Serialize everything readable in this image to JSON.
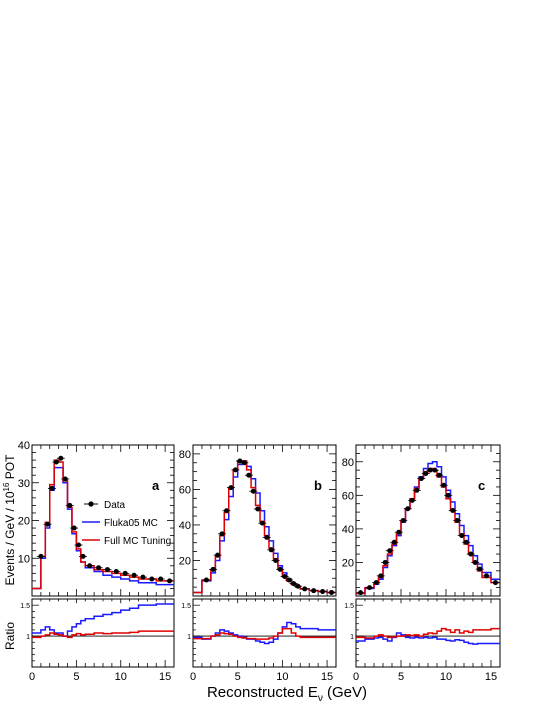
{
  "figure": {
    "ylabel_main": "Events / GeV / 10",
    "ylabel_main_sup": "16",
    "ylabel_main_unit": " POT",
    "ylabel_ratio": "Ratio",
    "xlabel_prefix": "Reconstructed E",
    "xlabel_sub": "ν",
    "xlabel_suffix": " (GeV)"
  },
  "legend": {
    "data": "Data",
    "fluka": "Fluka05 MC",
    "tuned": "Full MC Tuning"
  },
  "colors": {
    "data": "#000000",
    "fluka": "#1a1aff",
    "tuned": "#e00000",
    "ref": "#000000"
  },
  "chart_data": [
    {
      "type": "line",
      "panel_label": "a",
      "x_bins": [
        0,
        1,
        1.5,
        2,
        2.5,
        3,
        3.5,
        4,
        4.5,
        5,
        5.5,
        6,
        7,
        8,
        9,
        10,
        11,
        12,
        13,
        14,
        15,
        16
      ],
      "xlim": [
        0,
        16
      ],
      "ylim": [
        0,
        40
      ],
      "xticks": [
        0,
        5,
        10,
        15
      ],
      "yticks": [
        10,
        20,
        30,
        40
      ],
      "ratio_ylim": [
        0.5,
        1.6
      ],
      "ratio_yticks": [
        1,
        1.5
      ],
      "series": [
        {
          "name": "Data",
          "style": "points",
          "x": [
            1,
            1.75,
            2.25,
            2.75,
            3.25,
            3.75,
            4.25,
            4.75,
            5.25,
            5.75,
            6.5,
            7.5,
            8.5,
            9.5,
            10.5,
            11.5,
            12.5,
            13.5,
            14.5,
            15.5
          ],
          "y": [
            10.5,
            19,
            28.5,
            35.5,
            36.5,
            31,
            24,
            18,
            13.5,
            10.5,
            8,
            7.5,
            7,
            6.5,
            6,
            5.5,
            5,
            4.5,
            4.5,
            4
          ]
        },
        {
          "name": "Fluka05 MC",
          "style": "step",
          "values": [
            2,
            10,
            18,
            28,
            34,
            34,
            30,
            23,
            16.5,
            12,
            9,
            7.5,
            6.5,
            5.5,
            5,
            4.5,
            4,
            3.5,
            3.5,
            3,
            3
          ]
        },
        {
          "name": "Full MC Tuning",
          "style": "step",
          "values": [
            2,
            10.5,
            19.5,
            29.5,
            36,
            35.5,
            30.5,
            23.5,
            17,
            12.5,
            9,
            8,
            7,
            6.5,
            6,
            5.5,
            5,
            4.5,
            4.5,
            4,
            4
          ]
        },
        {
          "name": "ratio-fluka",
          "style": "ratio-step",
          "values": [
            1.05,
            1.1,
            1.15,
            1.1,
            1.05,
            1.05,
            1.0,
            1.08,
            1.15,
            1.2,
            1.25,
            1.28,
            1.32,
            1.35,
            1.38,
            1.42,
            1.45,
            1.5,
            1.5,
            1.52,
            1.52
          ]
        },
        {
          "name": "ratio-tuned",
          "style": "ratio-step",
          "values": [
            0.98,
            1.0,
            1.02,
            1.05,
            1.03,
            1.02,
            1.0,
            0.98,
            1.02,
            1.04,
            1.02,
            1.03,
            1.05,
            1.04,
            1.05,
            1.05,
            1.06,
            1.08,
            1.08,
            1.08,
            1.08
          ]
        }
      ]
    },
    {
      "type": "line",
      "panel_label": "b",
      "x_bins": [
        0,
        1,
        2,
        2.5,
        3,
        3.5,
        4,
        4.5,
        5,
        5.5,
        6,
        6.5,
        7,
        7.5,
        8,
        8.5,
        9,
        9.5,
        10,
        10.5,
        11,
        11.5,
        12,
        13,
        14,
        15,
        16
      ],
      "xlim": [
        0,
        16
      ],
      "ylim": [
        0,
        85
      ],
      "xticks": [
        0,
        5,
        10,
        15
      ],
      "yticks": [
        20,
        40,
        60,
        80
      ],
      "ratio_ylim": [
        0.5,
        1.6
      ],
      "ratio_yticks": [
        1,
        1.5
      ],
      "series": [
        {
          "name": "Data",
          "style": "points",
          "x": [
            1.5,
            2.25,
            2.75,
            3.25,
            3.75,
            4.25,
            4.75,
            5.25,
            5.75,
            6.25,
            6.75,
            7.25,
            7.75,
            8.25,
            8.75,
            9.25,
            9.75,
            10.25,
            10.75,
            11.25,
            11.75,
            12.5,
            13.5,
            14.5,
            15.5
          ],
          "y": [
            9,
            15,
            23,
            35,
            48,
            61,
            71,
            76,
            75,
            68,
            59,
            49,
            41,
            33,
            26,
            20,
            15,
            11,
            9,
            7,
            5.5,
            4,
            3,
            2.5,
            2
          ]
        },
        {
          "name": "Fluka05 MC",
          "style": "step",
          "values": [
            2,
            8.5,
            13,
            20,
            31,
            43,
            56,
            67,
            74,
            76,
            73,
            66,
            58,
            48,
            39,
            31,
            24,
            17,
            13,
            9.5,
            7,
            5.5,
            4,
            3,
            2.5,
            2
          ]
        },
        {
          "name": "Full MC Tuning",
          "style": "step",
          "values": [
            2,
            9,
            14.5,
            22,
            34,
            47,
            61,
            71,
            76,
            76,
            71,
            61,
            51,
            42,
            34,
            27,
            21,
            15,
            11,
            8.5,
            6.5,
            5,
            4,
            3,
            2.5,
            2
          ]
        },
        {
          "name": "ratio-fluka",
          "style": "ratio-step",
          "values": [
            0.98,
            0.95,
            1.0,
            1.05,
            1.1,
            1.08,
            1.05,
            1.02,
            1.0,
            0.98,
            0.95,
            0.95,
            0.92,
            0.9,
            0.88,
            0.9,
            0.95,
            1.05,
            1.15,
            1.22,
            1.2,
            1.15,
            1.12,
            1.12,
            1.1,
            1.1
          ]
        },
        {
          "name": "ratio-tuned",
          "style": "ratio-step",
          "values": [
            0.96,
            0.96,
            1.0,
            1.02,
            1.05,
            1.04,
            1.03,
            1.0,
            0.98,
            0.97,
            0.96,
            0.96,
            0.95,
            0.95,
            0.95,
            0.97,
            1.0,
            1.05,
            1.12,
            1.12,
            1.05,
            1.0,
            0.98,
            0.98,
            0.98,
            0.98
          ]
        }
      ]
    },
    {
      "type": "line",
      "panel_label": "c",
      "x_bins": [
        0,
        1,
        2,
        2.5,
        3,
        3.5,
        4,
        4.5,
        5,
        5.5,
        6,
        6.5,
        7,
        7.5,
        8,
        8.5,
        9,
        9.5,
        10,
        10.5,
        11,
        11.5,
        12,
        12.5,
        13,
        13.5,
        14,
        15,
        16
      ],
      "xlim": [
        0,
        16
      ],
      "ylim": [
        0,
        90
      ],
      "xticks": [
        0,
        5,
        10,
        15
      ],
      "yticks": [
        20,
        40,
        60,
        80
      ],
      "ratio_ylim": [
        0.5,
        1.6
      ],
      "ratio_yticks": [
        1,
        1.5
      ],
      "series": [
        {
          "name": "Data",
          "style": "points",
          "x": [
            0.5,
            1.5,
            2.25,
            2.75,
            3.25,
            3.75,
            4.25,
            4.75,
            5.25,
            5.75,
            6.25,
            6.75,
            7.25,
            7.75,
            8.25,
            8.75,
            9.25,
            9.75,
            10.25,
            10.75,
            11.25,
            11.75,
            12.25,
            12.75,
            13.25,
            13.75,
            14.5,
            15.5
          ],
          "y": [
            2,
            5,
            8,
            12,
            20,
            27,
            32,
            38,
            45,
            52,
            57,
            63,
            70,
            73,
            75,
            75,
            72,
            66,
            60,
            51,
            45,
            36,
            32,
            25,
            20,
            16,
            12,
            8
          ]
        },
        {
          "name": "Fluka05 MC",
          "style": "step",
          "values": [
            1.5,
            4.5,
            7,
            10,
            17,
            24,
            30,
            36,
            44,
            52,
            58,
            65,
            71,
            76,
            79,
            80,
            77,
            71,
            63,
            56,
            49,
            42,
            36,
            30,
            24,
            19,
            14,
            10
          ]
        },
        {
          "name": "Full MC Tuning",
          "style": "step",
          "values": [
            1.5,
            5,
            7.5,
            11,
            18,
            25,
            31,
            37,
            45,
            52,
            58,
            64,
            70,
            74,
            76,
            75,
            71,
            65,
            58,
            51,
            44,
            37,
            31,
            25,
            20,
            15,
            11,
            8
          ]
        },
        {
          "name": "ratio-fluka",
          "style": "ratio-step",
          "values": [
            0.92,
            0.95,
            0.97,
            0.98,
            0.95,
            0.92,
            0.98,
            1.05,
            1.02,
            0.98,
            0.97,
            0.98,
            0.97,
            0.98,
            0.97,
            0.98,
            0.95,
            0.95,
            0.93,
            0.92,
            0.94,
            0.93,
            0.9,
            0.88,
            0.87,
            0.88,
            0.88,
            0.88
          ]
        },
        {
          "name": "ratio-tuned",
          "style": "ratio-step",
          "values": [
            0.98,
            0.97,
            1.0,
            1.02,
            1.0,
            0.98,
            0.99,
            1.0,
            1.0,
            1.02,
            1.01,
            1.02,
            1.0,
            1.03,
            1.05,
            1.04,
            1.08,
            1.12,
            1.1,
            1.06,
            1.1,
            1.05,
            1.08,
            1.06,
            1.1,
            1.1,
            1.1,
            1.12
          ]
        }
      ]
    }
  ]
}
